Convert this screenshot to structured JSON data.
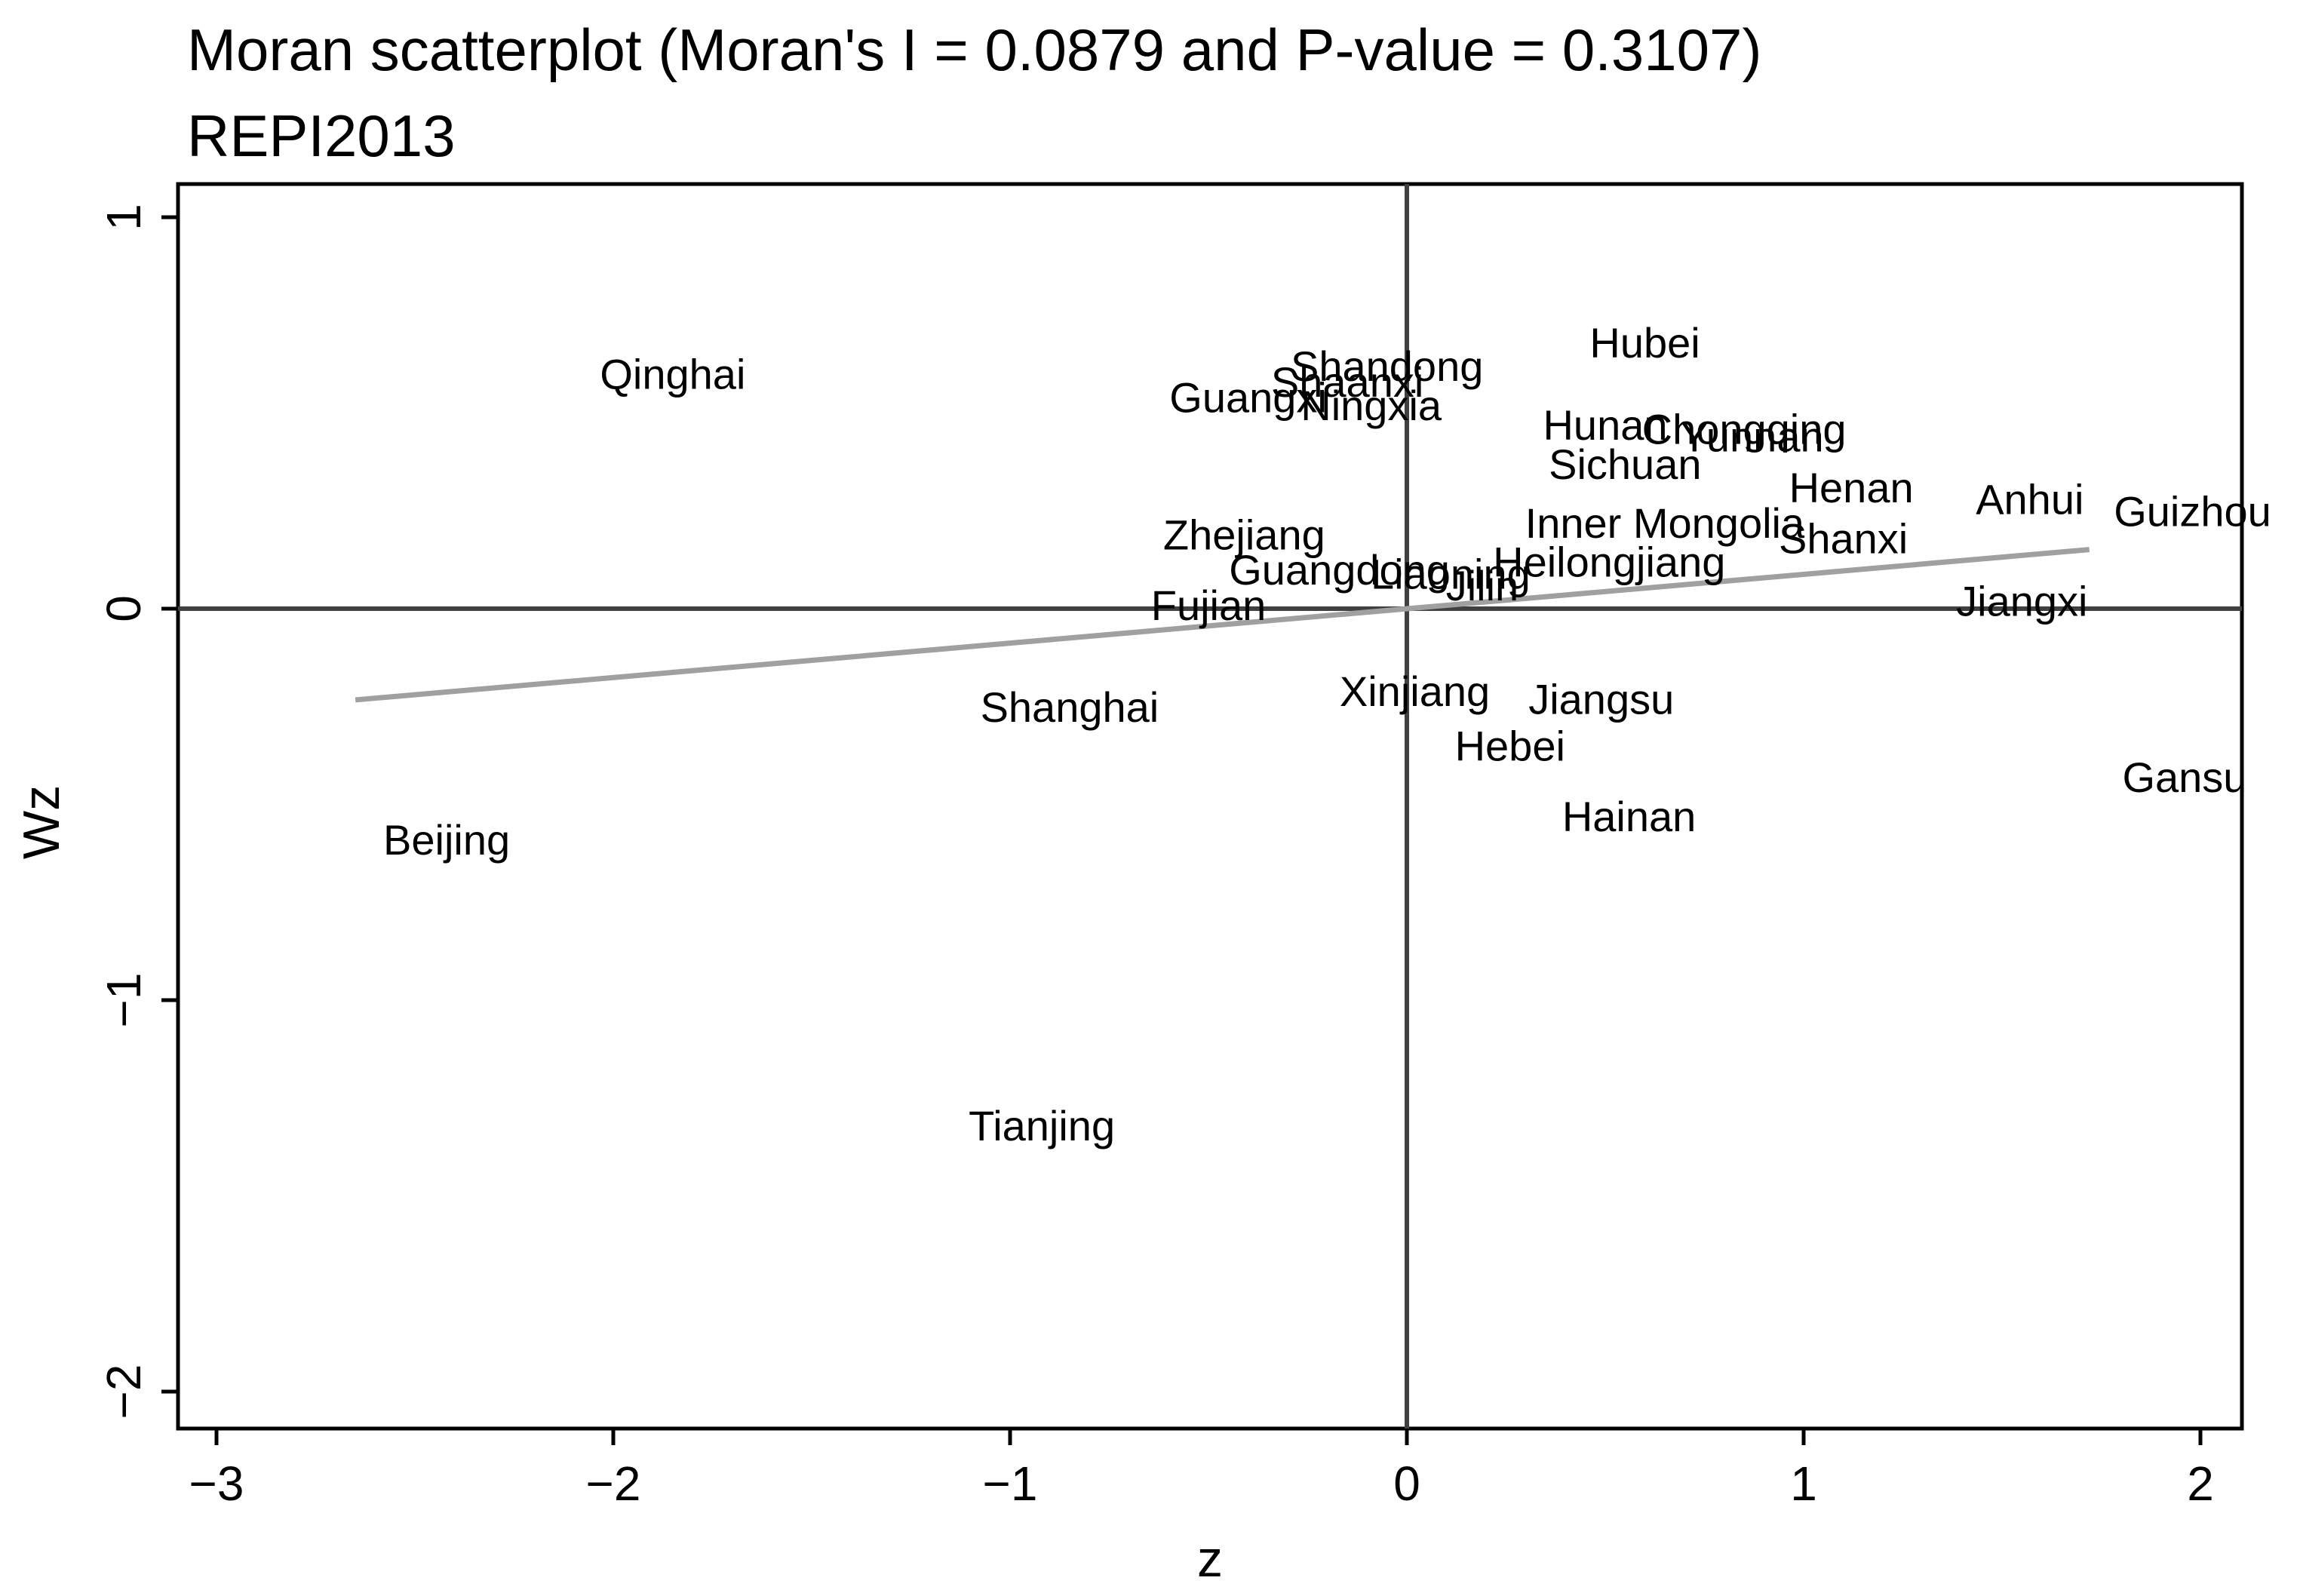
{
  "chart_data": {
    "type": "scatter",
    "title": "Moran scatterplot (Moran's I = 0.0879 and P-value = 0.3107)",
    "subtitle": "REPI2013",
    "xlabel": "z",
    "ylabel": "Wz",
    "xlim": [
      -3.1,
      2.1
    ],
    "ylim": [
      -2.2,
      1.1
    ],
    "x_ticks": [
      -3,
      -2,
      -1,
      0,
      1,
      2
    ],
    "y_ticks": [
      -2,
      -1,
      0,
      1
    ],
    "x_tick_labels": [
      "−3",
      "−2",
      "−1",
      "0",
      "1",
      "2"
    ],
    "y_tick_labels": [
      "−2",
      "−1",
      "0",
      "1"
    ],
    "reference_lines": {
      "x": 0,
      "y": 0,
      "color": "#404040"
    },
    "fit_line": {
      "x": [
        -2.65,
        1.72
      ],
      "y": [
        -0.233,
        0.151
      ],
      "color": "#a0a0a0"
    },
    "points": [
      {
        "label": "Qinghai",
        "x": -1.85,
        "y": 0.6
      },
      {
        "label": "Shandong",
        "x": -0.05,
        "y": 0.62
      },
      {
        "label": "Shaanxi",
        "x": -0.15,
        "y": 0.58
      },
      {
        "label": "Guangxi",
        "x": -0.4,
        "y": 0.54
      },
      {
        "label": "Ningxia",
        "x": -0.09,
        "y": 0.52
      },
      {
        "label": "Hubei",
        "x": 0.6,
        "y": 0.68
      },
      {
        "label": "Hunan",
        "x": 0.5,
        "y": 0.47
      },
      {
        "label": "Chongqing",
        "x": 0.85,
        "y": 0.46
      },
      {
        "label": "Yunnan",
        "x": 0.87,
        "y": 0.44
      },
      {
        "label": "Sichuan",
        "x": 0.55,
        "y": 0.37
      },
      {
        "label": "Henan",
        "x": 1.12,
        "y": 0.31
      },
      {
        "label": "Anhui",
        "x": 1.57,
        "y": 0.28
      },
      {
        "label": "Guizhou",
        "x": 1.98,
        "y": 0.25
      },
      {
        "label": "Inner Mongolia",
        "x": 0.65,
        "y": 0.22
      },
      {
        "label": "Shanxi",
        "x": 1.1,
        "y": 0.18
      },
      {
        "label": "Zhejiang",
        "x": -0.41,
        "y": 0.19
      },
      {
        "label": "Heilongjiang",
        "x": 0.51,
        "y": 0.12
      },
      {
        "label": "Guangdong",
        "x": -0.17,
        "y": 0.1
      },
      {
        "label": "Liaoning",
        "x": 0.11,
        "y": 0.09
      },
      {
        "label": "Jilin",
        "x": 0.19,
        "y": 0.06
      },
      {
        "label": "Fujian",
        "x": -0.5,
        "y": 0.01
      },
      {
        "label": "Jiangxi",
        "x": 1.55,
        "y": 0.02
      },
      {
        "label": "Xinjiang",
        "x": 0.02,
        "y": -0.21
      },
      {
        "label": "Jiangsu",
        "x": 0.49,
        "y": -0.23
      },
      {
        "label": "Shanghai",
        "x": -0.85,
        "y": -0.25
      },
      {
        "label": "Hebei",
        "x": 0.26,
        "y": -0.35
      },
      {
        "label": "Gansu",
        "x": 1.96,
        "y": -0.43
      },
      {
        "label": "Hainan",
        "x": 0.56,
        "y": -0.53
      },
      {
        "label": "Beijing",
        "x": -2.42,
        "y": -0.59
      },
      {
        "label": "Tianjing",
        "x": -0.92,
        "y": -1.32
      }
    ]
  }
}
